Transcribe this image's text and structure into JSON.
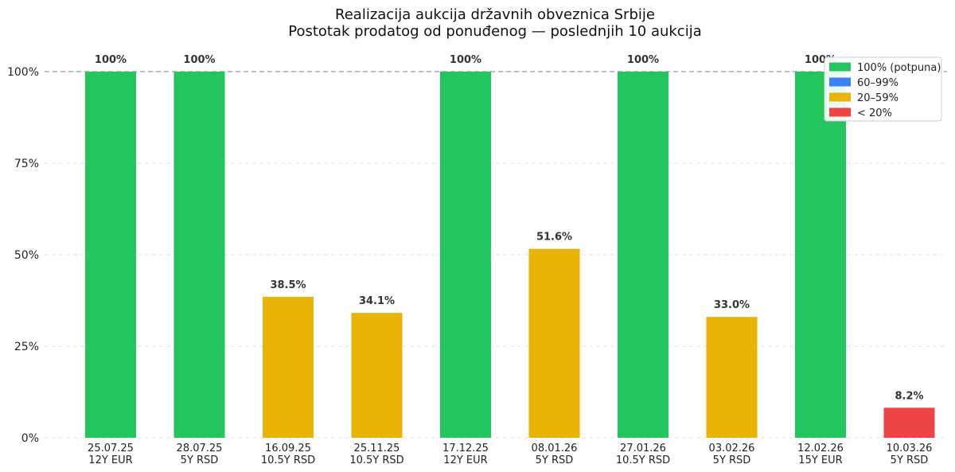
{
  "chart_data": {
    "type": "bar",
    "title": "Realizacija aukcija državnih obveznica Srbije",
    "subtitle": "Postotak prodatog od ponuđenog — poslednjih 10 aukcija",
    "xlabel": "",
    "ylabel": "",
    "ylim": [
      0,
      105
    ],
    "y_ticks": [
      {
        "value": 0,
        "label": "0%"
      },
      {
        "value": 25,
        "label": "25%"
      },
      {
        "value": 50,
        "label": "50%"
      },
      {
        "value": 75,
        "label": "75%"
      },
      {
        "value": 100,
        "label": "100%"
      }
    ],
    "reference_line": 100,
    "grid": "horizontal-dashed",
    "legend_position": "top-right",
    "legend": [
      {
        "label": "100% (potpuna)",
        "color": "#22c55e"
      },
      {
        "label": "60–99%",
        "color": "#3b82f6"
      },
      {
        "label": "20–59%",
        "color": "#eab308"
      },
      {
        "label": "< 20%",
        "color": "#ef4444"
      }
    ],
    "bars": [
      {
        "date": "25.07.25",
        "bond": "12Y EUR",
        "value": 100,
        "label": "100%",
        "color": "#22c55e"
      },
      {
        "date": "28.07.25",
        "bond": "5Y RSD",
        "value": 100,
        "label": "100%",
        "color": "#22c55e"
      },
      {
        "date": "16.09.25",
        "bond": "10.5Y RSD",
        "value": 38.5,
        "label": "38.5%",
        "color": "#eab308"
      },
      {
        "date": "25.11.25",
        "bond": "10.5Y RSD",
        "value": 34.1,
        "label": "34.1%",
        "color": "#eab308"
      },
      {
        "date": "17.12.25",
        "bond": "12Y EUR",
        "value": 100,
        "label": "100%",
        "color": "#22c55e"
      },
      {
        "date": "08.01.26",
        "bond": "5Y RSD",
        "value": 51.6,
        "label": "51.6%",
        "color": "#eab308"
      },
      {
        "date": "27.01.26",
        "bond": "10.5Y RSD",
        "value": 100,
        "label": "100%",
        "color": "#22c55e"
      },
      {
        "date": "03.02.26",
        "bond": "5Y RSD",
        "value": 33.0,
        "label": "33.0%",
        "color": "#eab308"
      },
      {
        "date": "12.02.26",
        "bond": "15Y EUR",
        "value": 100,
        "label": "100%",
        "color": "#22c55e"
      },
      {
        "date": "10.03.26",
        "bond": "5Y RSD",
        "value": 8.2,
        "label": "8.2%",
        "color": "#ef4444"
      }
    ]
  }
}
